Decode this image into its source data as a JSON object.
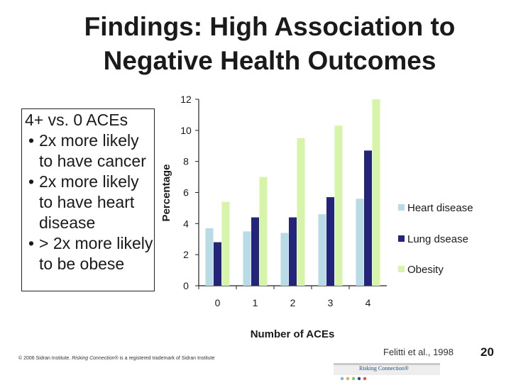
{
  "slide": {
    "title_line1": "Findings: High Association to",
    "title_line2": "Negative Health Outcomes",
    "textbox": {
      "heading": "4+  vs. 0 ACEs",
      "bullets": [
        "2x more likely to have cancer",
        "2x more likely to have heart disease",
        "> 2x more likely to be obese"
      ]
    },
    "copyright": {
      "prefix": "© 2006 Sidran Institute. ",
      "italic": "Risking Connection®",
      "suffix": " is a registered trademark of Sidran Institute"
    },
    "citation": "Felitti et al., 1998",
    "slide_number": "20",
    "logo_text": "Risking Connection®"
  },
  "chart_data": {
    "type": "bar",
    "categories": [
      "0",
      "1",
      "2",
      "3",
      "4"
    ],
    "series": [
      {
        "name": "Heart disease",
        "color": "#b9dbe6",
        "values": [
          3.7,
          3.5,
          3.4,
          4.6,
          5.6
        ]
      },
      {
        "name": "Lung dsease",
        "color": "#24247a",
        "values": [
          2.8,
          4.4,
          4.4,
          5.7,
          8.7
        ]
      },
      {
        "name": "Obesity",
        "color": "#d6f5a8",
        "values": [
          5.4,
          7.0,
          9.5,
          10.3,
          12.0
        ]
      }
    ],
    "xlabel": "Number of ACEs",
    "ylabel": "Percentage",
    "ylim": [
      0,
      12
    ],
    "yticks": [
      "0",
      "2",
      "4",
      "6",
      "8",
      "10",
      "12"
    ],
    "grid": false,
    "legend": "right"
  }
}
